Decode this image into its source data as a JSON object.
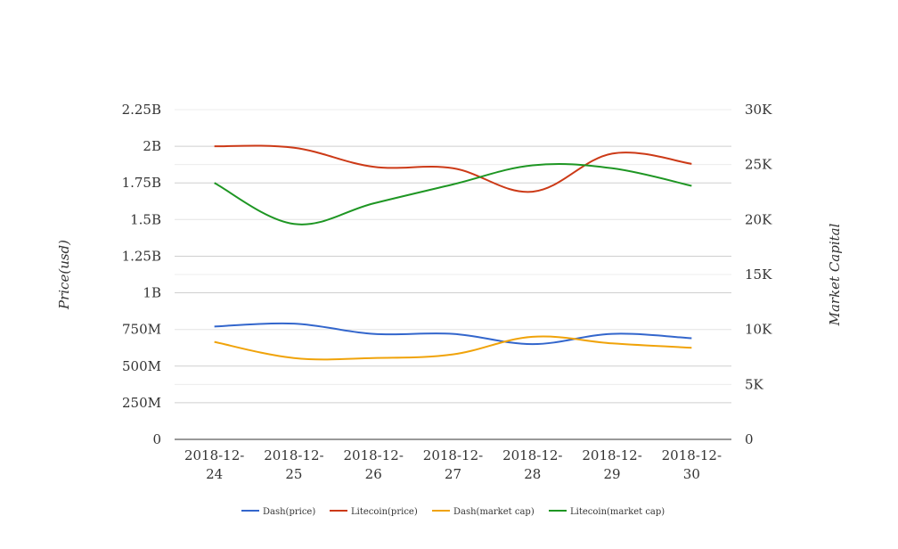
{
  "chart_data": {
    "type": "line",
    "categories": [
      "2018-12-24",
      "2018-12-25",
      "2018-12-26",
      "2018-12-27",
      "2018-12-28",
      "2018-12-29",
      "2018-12-30"
    ],
    "category_lines": [
      [
        "2018-12-",
        "24"
      ],
      [
        "2018-12-",
        "25"
      ],
      [
        "2018-12-",
        "26"
      ],
      [
        "2018-12-",
        "27"
      ],
      [
        "2018-12-",
        "28"
      ],
      [
        "2018-12-",
        "29"
      ],
      [
        "2018-12-",
        "30"
      ]
    ],
    "y_left": {
      "label": "Price(usd)",
      "range": [
        0,
        2250000000
      ],
      "ticks": [
        0,
        250000000,
        500000000,
        750000000,
        1000000000,
        1250000000,
        1500000000,
        1750000000,
        2000000000,
        2250000000
      ],
      "tick_labels": [
        "0",
        "250M",
        "500M",
        "750M",
        "1B",
        "1.25B",
        "1.5B",
        "1.75B",
        "2B",
        "2.25B"
      ]
    },
    "y_right": {
      "label": "Market Capital",
      "range": [
        0,
        30000
      ],
      "ticks": [
        0,
        5000,
        10000,
        15000,
        20000,
        25000,
        30000
      ],
      "tick_labels": [
        "0",
        "5K",
        "10K",
        "15K",
        "20K",
        "25K",
        "30K"
      ]
    },
    "grid": true,
    "legend_position": "bottom",
    "series": [
      {
        "name": "Dash(price)",
        "axis": "left",
        "color": "#3366cc",
        "values": [
          770000000,
          790000000,
          720000000,
          720000000,
          650000000,
          720000000,
          690000000
        ]
      },
      {
        "name": "Litecoin(price)",
        "axis": "left",
        "color": "#cc3a17",
        "values": [
          2000000000,
          1990000000,
          1860000000,
          1850000000,
          1690000000,
          1950000000,
          1880000000
        ]
      },
      {
        "name": "Dash(market cap)",
        "axis": "left",
        "color": "#f0a30a",
        "values": [
          665000000,
          555000000,
          555000000,
          580000000,
          700000000,
          655000000,
          625000000
        ]
      },
      {
        "name": "Litecoin(market cap)",
        "axis": "left",
        "color": "#1e9623",
        "values": [
          1750000000,
          1470000000,
          1610000000,
          1740000000,
          1870000000,
          1850000000,
          1730000000
        ]
      }
    ]
  }
}
